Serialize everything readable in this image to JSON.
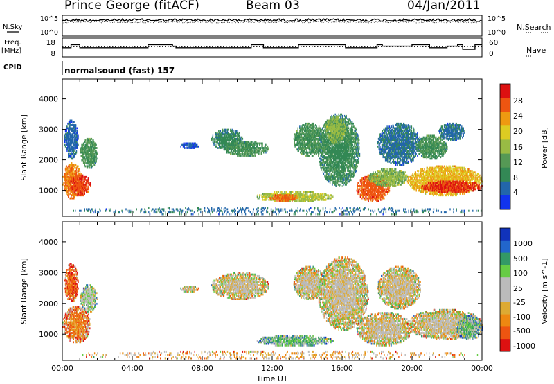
{
  "header": {
    "station": "Prince George (fitACF)",
    "beam": "Beam 03",
    "date": "04/Jan/2011"
  },
  "panel_labels": {
    "nsky": "N.Sky",
    "nsearch": "N.Search",
    "freq": "Freq.",
    "freq_unit": "[MHz]",
    "cpid": "CPID",
    "nave": "Nave",
    "cpid_text": "normalsound (fast) 157"
  },
  "colors": {
    "power": [
      "#1133ee",
      "#2266aa",
      "#338855",
      "#559955",
      "#99bb44",
      "#ddcc22",
      "#ee9911",
      "#ee5511",
      "#dd1111"
    ],
    "velocity": [
      "#1133bb",
      "#2266cc",
      "#339966",
      "#66cc44",
      "#bbbbbb",
      "#bbbbbb",
      "#ddaa33",
      "#ee8811",
      "#ee5511",
      "#dd1111"
    ]
  },
  "chart_data": [
    {
      "type": "line",
      "name": "noise",
      "ylabels_left": [
        "10^5",
        "10^0"
      ],
      "ylabels_right": [
        "10^5",
        "10^0"
      ],
      "xlim": [
        0,
        24
      ]
    },
    {
      "type": "line",
      "name": "frequency_nave",
      "ylabels_left": [
        "18",
        "8"
      ],
      "ylabels_right": [
        "60",
        "0"
      ],
      "freq": {
        "x": [
          0.0,
          0.5,
          0.5,
          1.0,
          1.0,
          4.9,
          4.9,
          6.3,
          6.3,
          6.5,
          6.5,
          10.8,
          10.8,
          11.5,
          11.5,
          13.5,
          13.5,
          16.2,
          16.2,
          18.0,
          18.0,
          18.3,
          18.3,
          20.0,
          20.0,
          21.0,
          21.0,
          22.0,
          22.0,
          22.6,
          22.6,
          22.9,
          22.9,
          23.6,
          23.6,
          24.0
        ],
        "y": [
          14.0,
          14.0,
          16.0,
          16.0,
          14.0,
          14.0,
          16.0,
          16.0,
          15.0,
          15.0,
          14.0,
          14.0,
          16.0,
          16.0,
          14.0,
          14.0,
          16.0,
          16.0,
          14.0,
          14.0,
          16.0,
          16.0,
          15.0,
          15.0,
          16.0,
          16.0,
          14.0,
          14.0,
          15.0,
          15.0,
          16.0,
          16.0,
          13.0,
          13.0,
          16.0,
          16.0
        ]
      },
      "nave_dotted": 40,
      "xlim": [
        0,
        24
      ]
    },
    {
      "type": "heatmap",
      "name": "power",
      "ylabel": "Slant Range [km]",
      "yticks": [
        1000,
        2000,
        3000,
        4000
      ],
      "ylim": [
        150,
        4650
      ],
      "xlim": [
        0,
        24
      ],
      "colorbar": {
        "label": "Power [dB]",
        "ticks": [
          "28",
          "24",
          "20",
          "16",
          "12",
          "8",
          "4"
        ],
        "range": [
          0,
          30
        ]
      },
      "blobs": [
        {
          "x0": 0.0,
          "x1": 1.1,
          "r0": 700,
          "r1": 1900,
          "v": 23
        },
        {
          "x0": 0.4,
          "x1": 1.6,
          "r0": 800,
          "r1": 1500,
          "v": 26
        },
        {
          "x0": 1.0,
          "x1": 2.0,
          "r0": 1700,
          "r1": 2700,
          "v": 10
        },
        {
          "x0": 0.1,
          "x1": 0.9,
          "r0": 2000,
          "r1": 3300,
          "v": 5
        },
        {
          "x0": 8.5,
          "x1": 10.3,
          "r0": 2300,
          "r1": 3000,
          "v": 8
        },
        {
          "x0": 9.2,
          "x1": 11.8,
          "r0": 2100,
          "r1": 2600,
          "v": 10
        },
        {
          "x0": 6.7,
          "x1": 7.8,
          "r0": 2350,
          "r1": 2550,
          "v": 4
        },
        {
          "x0": 11.0,
          "x1": 15.5,
          "r0": 600,
          "r1": 950,
          "v": 16
        },
        {
          "x0": 11.8,
          "x1": 13.5,
          "r0": 620,
          "r1": 850,
          "v": 24
        },
        {
          "x0": 13.2,
          "x1": 15.0,
          "r0": 2100,
          "r1": 3200,
          "v": 10
        },
        {
          "x0": 14.6,
          "x1": 17.0,
          "r0": 1100,
          "r1": 3500,
          "v": 9
        },
        {
          "x0": 15.0,
          "x1": 16.2,
          "r0": 2500,
          "r1": 3400,
          "v": 14
        },
        {
          "x0": 16.8,
          "x1": 18.7,
          "r0": 600,
          "r1": 1500,
          "v": 25
        },
        {
          "x0": 17.5,
          "x1": 19.8,
          "r0": 1100,
          "r1": 1700,
          "v": 14
        },
        {
          "x0": 18.0,
          "x1": 20.5,
          "r0": 1800,
          "r1": 3200,
          "v": 6
        },
        {
          "x0": 19.7,
          "x1": 24.0,
          "r0": 800,
          "r1": 1800,
          "v": 20
        },
        {
          "x0": 20.5,
          "x1": 24.0,
          "r0": 900,
          "r1": 1300,
          "v": 27
        },
        {
          "x0": 20.2,
          "x1": 22.0,
          "r0": 2000,
          "r1": 2800,
          "v": 10
        },
        {
          "x0": 21.5,
          "x1": 23.0,
          "r0": 2600,
          "r1": 3200,
          "v": 6
        },
        {
          "x0": 0.0,
          "x1": 24.0,
          "r0": 180,
          "r1": 450,
          "v": 6
        }
      ]
    },
    {
      "type": "heatmap",
      "name": "velocity",
      "ylabel": "Slant Range [km]",
      "yticks": [
        1000,
        2000,
        3000,
        4000
      ],
      "ylim": [
        150,
        4650
      ],
      "xlim": [
        0,
        24
      ],
      "xticks": [
        "00:00",
        "04:00",
        "08:00",
        "12:00",
        "16:00",
        "20:00",
        "00:00"
      ],
      "xlabel": "Time UT",
      "colorbar": {
        "label": "Velocity [m s^-1]",
        "ticks": [
          "1000",
          "500",
          "100",
          "25",
          "-25",
          "-100",
          "-500",
          "-1000"
        ]
      },
      "blobs": [
        {
          "x0": 0.0,
          "x1": 1.6,
          "r0": 700,
          "r1": 1900,
          "v": 7
        },
        {
          "x0": 1.0,
          "x1": 2.0,
          "r0": 1700,
          "r1": 2600,
          "v": 4
        },
        {
          "x0": 0.1,
          "x1": 0.9,
          "r0": 2000,
          "r1": 3300,
          "v": 8
        },
        {
          "x0": 8.5,
          "x1": 11.8,
          "r0": 2100,
          "r1": 3000,
          "v": 5
        },
        {
          "x0": 6.7,
          "x1": 7.8,
          "r0": 2350,
          "r1": 2550,
          "v": 5
        },
        {
          "x0": 11.0,
          "x1": 15.5,
          "r0": 600,
          "r1": 950,
          "v": 3
        },
        {
          "x0": 13.2,
          "x1": 15.0,
          "r0": 2100,
          "r1": 3200,
          "v": 5
        },
        {
          "x0": 14.6,
          "x1": 17.5,
          "r0": 1100,
          "r1": 3500,
          "v": 5
        },
        {
          "x0": 16.8,
          "x1": 20.0,
          "r0": 600,
          "r1": 1700,
          "v": 5
        },
        {
          "x0": 18.0,
          "x1": 20.5,
          "r0": 1800,
          "r1": 3200,
          "v": 5
        },
        {
          "x0": 19.7,
          "x1": 24.0,
          "r0": 800,
          "r1": 1800,
          "v": 5
        },
        {
          "x0": 22.5,
          "x1": 24.0,
          "r0": 800,
          "r1": 1600,
          "v": 3
        },
        {
          "x0": 0.0,
          "x1": 24.0,
          "r0": 180,
          "r1": 450,
          "v": 6
        }
      ]
    }
  ]
}
